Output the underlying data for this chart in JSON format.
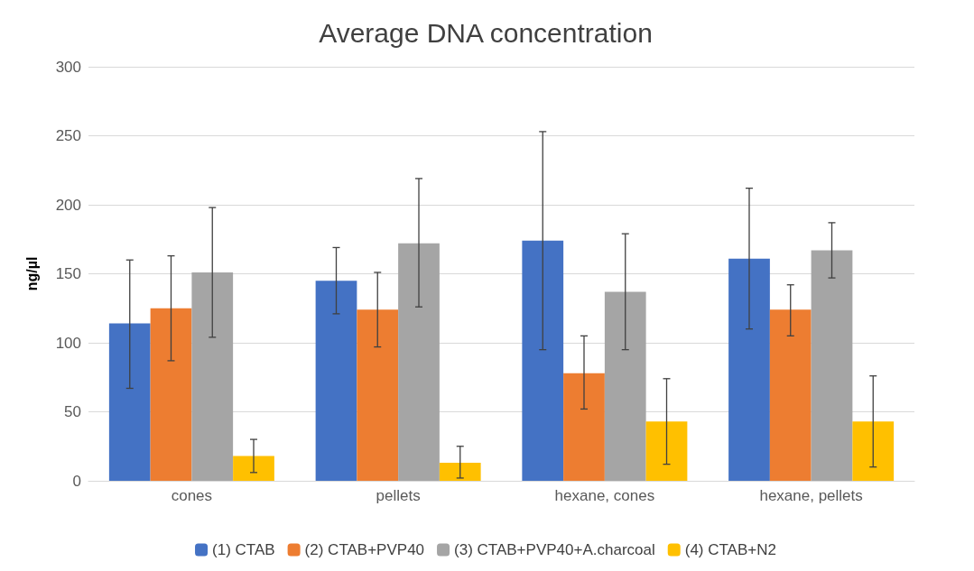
{
  "chart_data": {
    "type": "bar",
    "title": "Average DNA concentration",
    "ylabel": "ng/µl",
    "categories": [
      "cones",
      "pellets",
      "hexane, cones",
      "hexane, pellets"
    ],
    "series": [
      {
        "name": "(1) CTAB",
        "color": "#4472c4",
        "values": [
          114,
          145,
          174,
          161
        ],
        "errors": [
          [
            67,
            160
          ],
          [
            121,
            169
          ],
          [
            95,
            253
          ],
          [
            110,
            212
          ]
        ]
      },
      {
        "name": "(2) CTAB+PVP40",
        "color": "#ed7d31",
        "values": [
          125,
          124,
          78,
          124
        ],
        "errors": [
          [
            87,
            163
          ],
          [
            97,
            151
          ],
          [
            52,
            105
          ],
          [
            105,
            142
          ]
        ]
      },
      {
        "name": "(3) CTAB+PVP40+A.charcoal",
        "color": "#a5a5a5",
        "values": [
          151,
          172,
          137,
          167
        ],
        "errors": [
          [
            104,
            198
          ],
          [
            126,
            219
          ],
          [
            95,
            179
          ],
          [
            147,
            187
          ]
        ]
      },
      {
        "name": "(4) CTAB+N2",
        "color": "#ffc000",
        "values": [
          18,
          13,
          43,
          43
        ],
        "errors": [
          [
            6,
            30
          ],
          [
            2,
            25
          ],
          [
            12,
            74
          ],
          [
            10,
            76
          ]
        ]
      }
    ],
    "ylim": [
      0,
      300
    ],
    "yticks": [
      0,
      50,
      100,
      150,
      200,
      250,
      300
    ],
    "grid": "y",
    "legend": "bottom"
  }
}
